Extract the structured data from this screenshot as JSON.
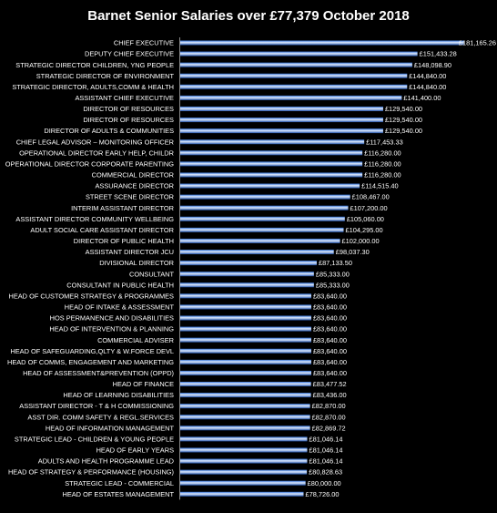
{
  "chart_data": {
    "type": "bar",
    "orientation": "horizontal",
    "title": "Barnet Senior Salaries over £77,379 October 2018",
    "xlabel": "",
    "ylabel": "",
    "xlim": [
      0,
      190000
    ],
    "grid": false,
    "legend": "none",
    "colors": {
      "background": "#000000",
      "text": "#ffffff",
      "bar_top": "#2f6fd6",
      "bar_mid": "#dfeafc",
      "bar_bottom": "#1d4fa8",
      "axis": "#8a8a8a"
    },
    "categories": [
      "CHIEF EXECUTIVE",
      "DEPUTY CHIEF EXECUTIVE",
      "STRATEGIC DIRECTOR CHILDREN, YNG PEOPLE",
      "STRATEGIC DIRECTOR OF ENVIRONMENT",
      "STRATEGIC DIRECTOR, ADULTS,COMM & HEALTH",
      "ASSISTANT CHIEF EXECUTIVE",
      "DIRECTOR OF RESOURCES",
      "DIRECTOR OF RESOURCES",
      "DIRECTOR OF ADULTS & COMMUNITIES",
      "CHIEF LEGAL ADVISOR – MONITORING OFFICER",
      "OPERATIONAL DIRECTOR EARLY HELP, CHILDR",
      "OPERATIONAL DIRECTOR CORPORATE PARENTING",
      "COMMERCIAL DIRECTOR",
      "ASSURANCE DIRECTOR",
      "STREET SCENE DIRECTOR",
      "INTERIM ASSISTANT DIRECTOR",
      "ASSISTANT DIRECTOR COMMUNITY WELLBEING",
      "ADULT SOCIAL CARE ASSISTANT DIRECTOR",
      "DIRECTOR OF PUBLIC HEALTH",
      "ASSISTANT DIRECTOR JCU",
      "DIVISIONAL DIRECTOR",
      "CONSULTANT",
      "CONSULTANT IN PUBLIC HEALTH",
      "HEAD OF CUSTOMER STRATEGY & PROGRAMMES",
      "HEAD OF INTAKE & ASSESSMENT",
      "HOS PERMANENCE AND DISABILITIES",
      "HEAD OF INTERVENTION & PLANNING",
      "COMMERCIAL ADVISER",
      "HEAD OF SAFEGUARDING,QLTY & W.FORCE DEVL",
      "HEAD OF COMMS, ENGAGEMENT AND MARKETING",
      "HEAD OF ASSESSMENT&PREVENTION (OPPD)",
      "HEAD OF FINANCE",
      "HEAD OF LEARNING DISABILITIES",
      "ASSISTANT DIRECTOR - T & H COMMISSIONING",
      "ASST DIR. COMM SAFETY & REGL.SERVICES",
      "HEAD OF INFORMATION MANAGEMENT",
      "STRATEGIC LEAD - CHILDREN & YOUNG PEOPLE",
      "HEAD OF EARLY YEARS",
      "ADULTS AND HEALTH PROGRAMME LEAD",
      "HEAD OF STRATEGY & PERFORMANCE (HOUSING)",
      "STRATEGIC LEAD - COMMERCIAL",
      "HEAD OF ESTATES MANAGEMENT"
    ],
    "values": [
      181165.26,
      151433.28,
      148098.9,
      144840.0,
      144840.0,
      141400.0,
      129540.0,
      129540.0,
      129540.0,
      117453.33,
      116280.0,
      116280.0,
      116280.0,
      114515.4,
      108467.0,
      107200.0,
      105060.0,
      104295.0,
      102000.0,
      98037.3,
      87133.5,
      85333.0,
      85333.0,
      83640.0,
      83640.0,
      83640.0,
      83640.0,
      83640.0,
      83640.0,
      83640.0,
      83640.0,
      83477.52,
      83436.0,
      82870.0,
      82870.0,
      82869.72,
      81046.14,
      81046.14,
      81046.14,
      80828.63,
      80000.0,
      78726.0
    ],
    "value_labels": [
      "£181,165.26",
      "£151,433.28",
      "£148,098.90",
      "£144,840.00",
      "£144,840.00",
      "£141,400.00",
      "£129,540.00",
      "£129,540.00",
      "£129,540.00",
      "£117,453.33",
      "£116,280.00",
      "£116,280.00",
      "£116,280.00",
      "£114,515.40",
      "£108,467.00",
      "£107,200.00",
      "£105,060.00",
      "£104,295.00",
      "£102,000.00",
      "£98,037.30",
      "£87,133.50",
      "£85,333.00",
      "£85,333.00",
      "£83,640.00",
      "£83,640.00",
      "£83,640.00",
      "£83,640.00",
      "£83,640.00",
      "£83,640.00",
      "£83,640.00",
      "£83,640.00",
      "£83,477.52",
      "£83,436.00",
      "£82,870.00",
      "£82,870.00",
      "£82,869.72",
      "£81,046.14",
      "£81,046.14",
      "£81,046.14",
      "£80,828.63",
      "£80,000.00",
      "£78,726.00"
    ]
  }
}
